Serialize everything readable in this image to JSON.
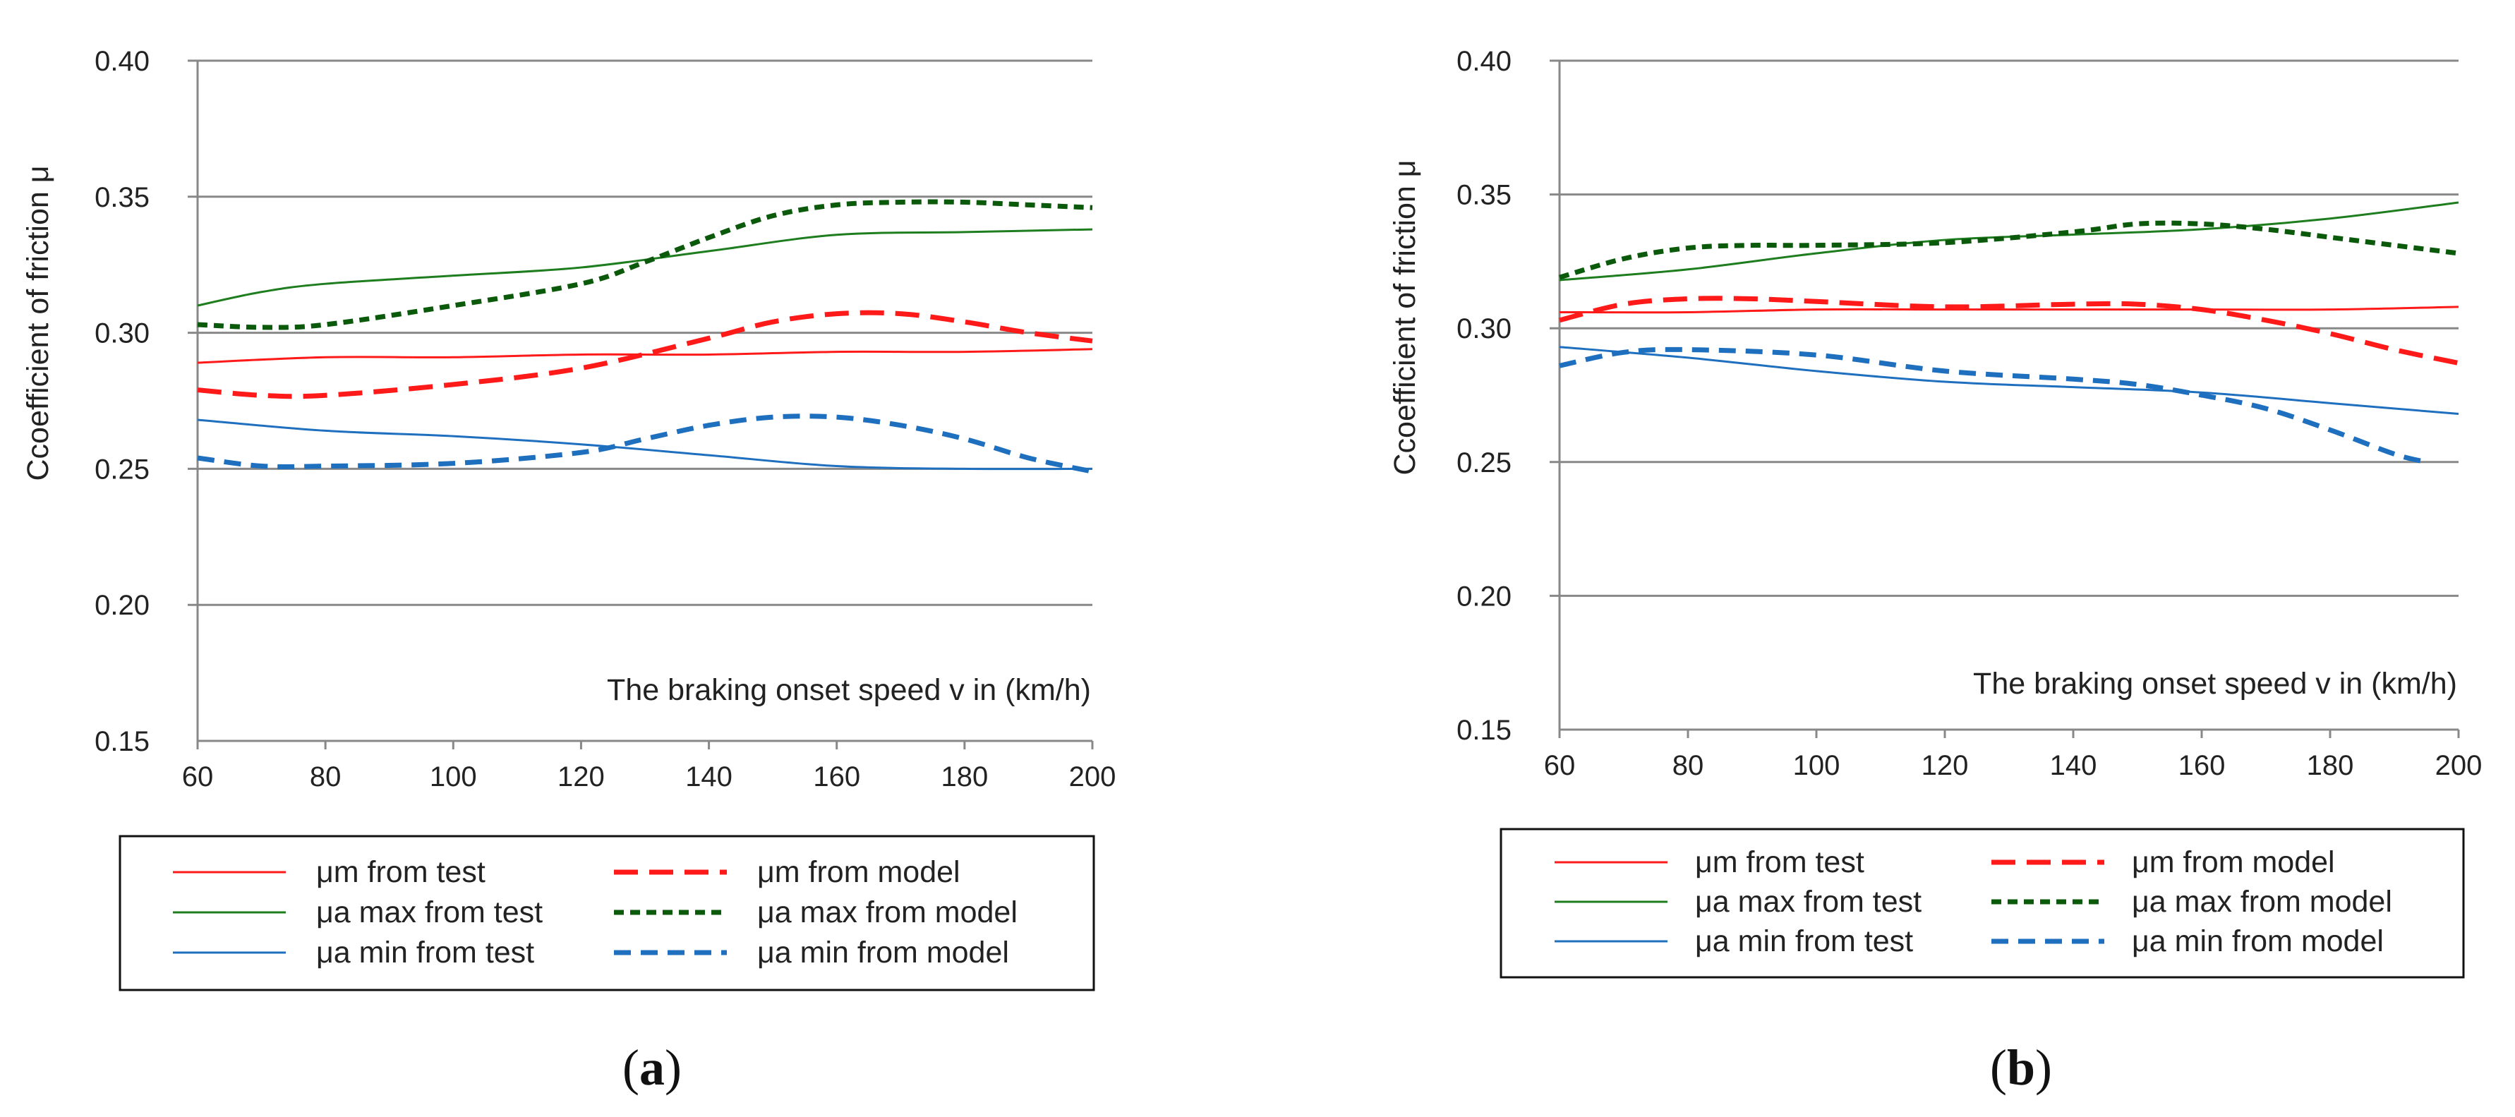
{
  "colors": {
    "red_test": "#ff1a1a",
    "red_model": "#ff1a1a",
    "green_test": "#1e7d1e",
    "green_model": "#0b5a0b",
    "blue_test": "#1f6fbf",
    "blue_model": "#1f6fbf",
    "grid": "#888888",
    "axis": "#888888"
  },
  "panels": [
    {
      "label_open": "(",
      "label_letter": "a",
      "label_close": ")"
    },
    {
      "label_open": "(",
      "label_letter": "b",
      "label_close": ")"
    }
  ],
  "chart_data": [
    {
      "type": "line",
      "ylabel": "Ccoefficient of friction  μ",
      "xlabel": "The braking  onset speed v in (km/h)",
      "x_ticks": [
        "60",
        "80",
        "100",
        "120",
        "140",
        "160",
        "180",
        "200"
      ],
      "y_ticks": [
        "0.15",
        "0.20",
        "0.25",
        "0.30",
        "0.35",
        "0.40"
      ],
      "xlim": [
        60,
        200
      ],
      "ylim": [
        0.15,
        0.4
      ],
      "grid": true,
      "legend": "bottom",
      "series": [
        {
          "name": "μm from test",
          "color": "#ff1a1a",
          "style": "solid",
          "x": [
            60,
            80,
            100,
            120,
            140,
            160,
            180,
            200
          ],
          "y": [
            0.289,
            0.291,
            0.291,
            0.292,
            0.292,
            0.293,
            0.293,
            0.294
          ]
        },
        {
          "name": "μa max from test",
          "color": "#1e7d1e",
          "style": "solid",
          "x": [
            60,
            70,
            80,
            100,
            120,
            140,
            160,
            180,
            200
          ],
          "y": [
            0.31,
            0.315,
            0.318,
            0.321,
            0.324,
            0.33,
            0.336,
            0.337,
            0.338
          ]
        },
        {
          "name": "μa min from test",
          "color": "#1f6fbf",
          "style": "solid",
          "x": [
            60,
            80,
            100,
            120,
            140,
            160,
            180,
            200
          ],
          "y": [
            0.268,
            0.264,
            0.262,
            0.259,
            0.255,
            0.251,
            0.25,
            0.25
          ]
        },
        {
          "name": "μm from model",
          "color": "#ff1a1a",
          "style": "longdash",
          "x": [
            60,
            70,
            80,
            100,
            120,
            140,
            150,
            160,
            170,
            180,
            190,
            200
          ],
          "y": [
            0.279,
            0.277,
            0.277,
            0.281,
            0.287,
            0.298,
            0.304,
            0.307,
            0.307,
            0.304,
            0.3,
            0.297
          ]
        },
        {
          "name": "μa max from model",
          "color": "#0b5a0b",
          "style": "shortdash",
          "x": [
            60,
            70,
            80,
            100,
            120,
            130,
            140,
            150,
            160,
            170,
            180,
            190,
            200
          ],
          "y": [
            0.303,
            0.302,
            0.303,
            0.31,
            0.318,
            0.326,
            0.335,
            0.343,
            0.347,
            0.348,
            0.348,
            0.347,
            0.346
          ]
        },
        {
          "name": "μa min from model",
          "color": "#1f6fbf",
          "style": "mediumdash",
          "x": [
            60,
            70,
            80,
            100,
            120,
            130,
            140,
            150,
            160,
            170,
            180,
            190,
            200
          ],
          "y": [
            0.254,
            0.251,
            0.251,
            0.252,
            0.256,
            0.261,
            0.266,
            0.269,
            0.269,
            0.266,
            0.261,
            0.254,
            0.249
          ]
        }
      ]
    },
    {
      "type": "line",
      "ylabel": "Ccoefficient of friction  μ",
      "xlabel": "The braking  onset speed v in (km/h)",
      "x_ticks": [
        "60",
        "80",
        "100",
        "120",
        "140",
        "160",
        "180",
        "200"
      ],
      "y_ticks": [
        "0.15",
        "0.20",
        "0.25",
        "0.30",
        "0.35",
        "0.40"
      ],
      "xlim": [
        60,
        200
      ],
      "ylim": [
        0.15,
        0.4
      ],
      "grid": true,
      "legend": "bottom",
      "series": [
        {
          "name": "μm from test",
          "color": "#ff1a1a",
          "style": "solid",
          "x": [
            60,
            80,
            100,
            120,
            140,
            160,
            180,
            200
          ],
          "y": [
            0.306,
            0.306,
            0.307,
            0.307,
            0.307,
            0.307,
            0.307,
            0.308
          ]
        },
        {
          "name": "μa max from test",
          "color": "#1e7d1e",
          "style": "solid",
          "x": [
            60,
            80,
            100,
            120,
            140,
            160,
            180,
            200
          ],
          "y": [
            0.318,
            0.322,
            0.328,
            0.333,
            0.335,
            0.337,
            0.341,
            0.347
          ]
        },
        {
          "name": "μa min from test",
          "color": "#1f6fbf",
          "style": "solid",
          "x": [
            60,
            80,
            100,
            120,
            140,
            160,
            180,
            200
          ],
          "y": [
            0.293,
            0.289,
            0.284,
            0.28,
            0.278,
            0.276,
            0.272,
            0.268
          ]
        },
        {
          "name": "μm from model",
          "color": "#ff1a1a",
          "style": "longdash",
          "x": [
            60,
            70,
            80,
            90,
            100,
            120,
            140,
            150,
            160,
            170,
            180,
            190,
            200
          ],
          "y": [
            0.303,
            0.309,
            0.311,
            0.311,
            0.31,
            0.308,
            0.309,
            0.309,
            0.307,
            0.303,
            0.298,
            0.292,
            0.287
          ]
        },
        {
          "name": "μa max from model",
          "color": "#0b5a0b",
          "style": "shortdash",
          "x": [
            60,
            70,
            80,
            90,
            100,
            120,
            140,
            150,
            160,
            170,
            180,
            190,
            200
          ],
          "y": [
            0.319,
            0.326,
            0.33,
            0.331,
            0.331,
            0.332,
            0.336,
            0.339,
            0.339,
            0.337,
            0.334,
            0.331,
            0.328
          ]
        },
        {
          "name": "μa min from model",
          "color": "#1f6fbf",
          "style": "mediumdash",
          "x": [
            60,
            70,
            80,
            100,
            120,
            140,
            150,
            160,
            170,
            180,
            190,
            195
          ],
          "y": [
            0.286,
            0.291,
            0.292,
            0.29,
            0.284,
            0.281,
            0.279,
            0.275,
            0.27,
            0.262,
            0.253,
            0.25
          ]
        }
      ]
    }
  ]
}
